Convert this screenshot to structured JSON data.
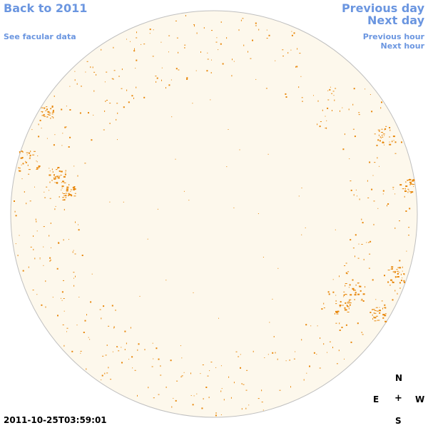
{
  "nav": {
    "back_label": "Back to 2011",
    "facular_label": "See facular data",
    "previous_day_label": "Previous day",
    "next_day_label": "Next day",
    "previous_hour_label": "Previous hour",
    "next_hour_label": "Next hour"
  },
  "timestamp": "2011-10-25T03:59:01",
  "compass": {
    "north": "N",
    "east": "E",
    "center": "+",
    "west": "W",
    "south": "S"
  },
  "colors": {
    "link": "#6b96e0",
    "disk_fill": "#fdf8ec",
    "disk_border": "#bfbfbf",
    "facula": "#e8870a"
  }
}
